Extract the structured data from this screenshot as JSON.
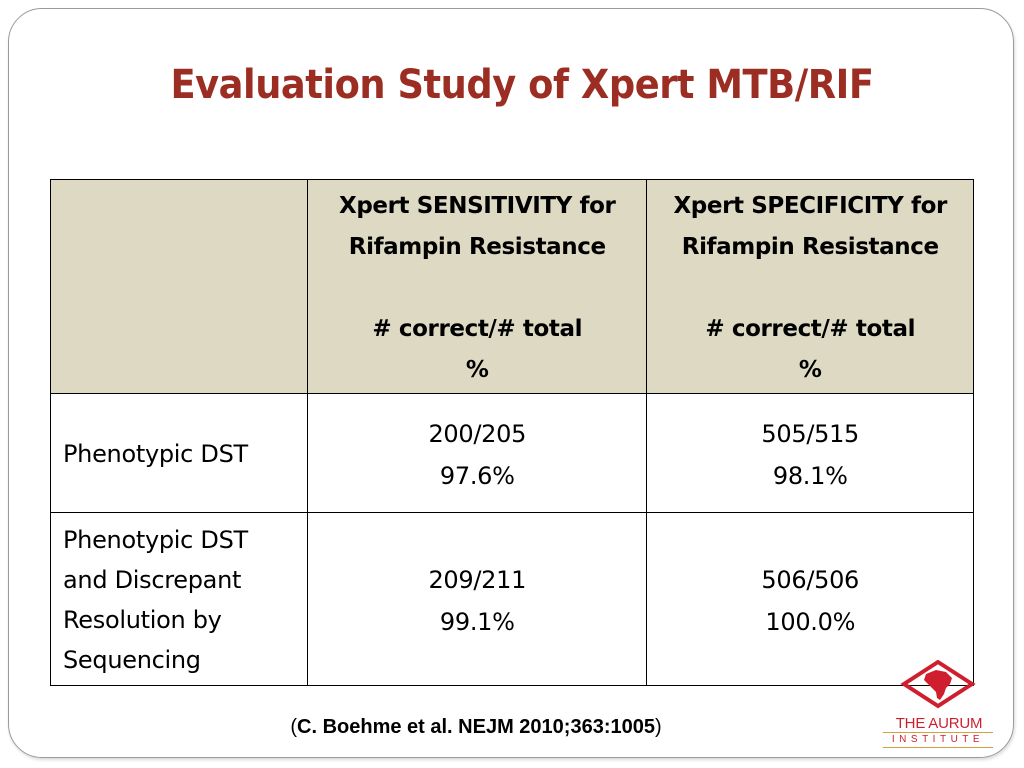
{
  "slide": {
    "title": "Evaluation Study of Xpert MTB/RIF"
  },
  "table": {
    "header": {
      "sensitivity": {
        "line1": "Xpert SENSITIVITY for",
        "line2": "Rifampin Resistance",
        "line3": "# correct/# total",
        "line4": "%"
      },
      "specificity": {
        "line1": "Xpert SPECIFICITY for",
        "line2": "Rifampin Resistance",
        "line3": "# correct/# total",
        "line4": "%"
      }
    },
    "rows": [
      {
        "label_lines": [
          "Phenotypic DST"
        ],
        "sensitivity": {
          "ratio": "200/205",
          "percent": "97.6%"
        },
        "specificity": {
          "ratio": "505/515",
          "percent": "98.1%"
        }
      },
      {
        "label_lines": [
          "Phenotypic DST",
          "and Discrepant",
          "Resolution by",
          "Sequencing"
        ],
        "sensitivity": {
          "ratio": "209/211",
          "percent": "99.1%"
        },
        "specificity": {
          "ratio": "506/506",
          "percent": "100.0%"
        }
      }
    ]
  },
  "citation": {
    "open": "(",
    "text": "C. Boehme et al. NEJM 2010;363:1005",
    "close": ")"
  },
  "logo": {
    "name": "THE AURUM",
    "sub": "INSTITUTE",
    "colors": {
      "primary": "#cf1f2e",
      "accent": "#d5a040"
    }
  },
  "colors": {
    "title": "#9b2d22",
    "header_fill": "#ddd9c3"
  }
}
